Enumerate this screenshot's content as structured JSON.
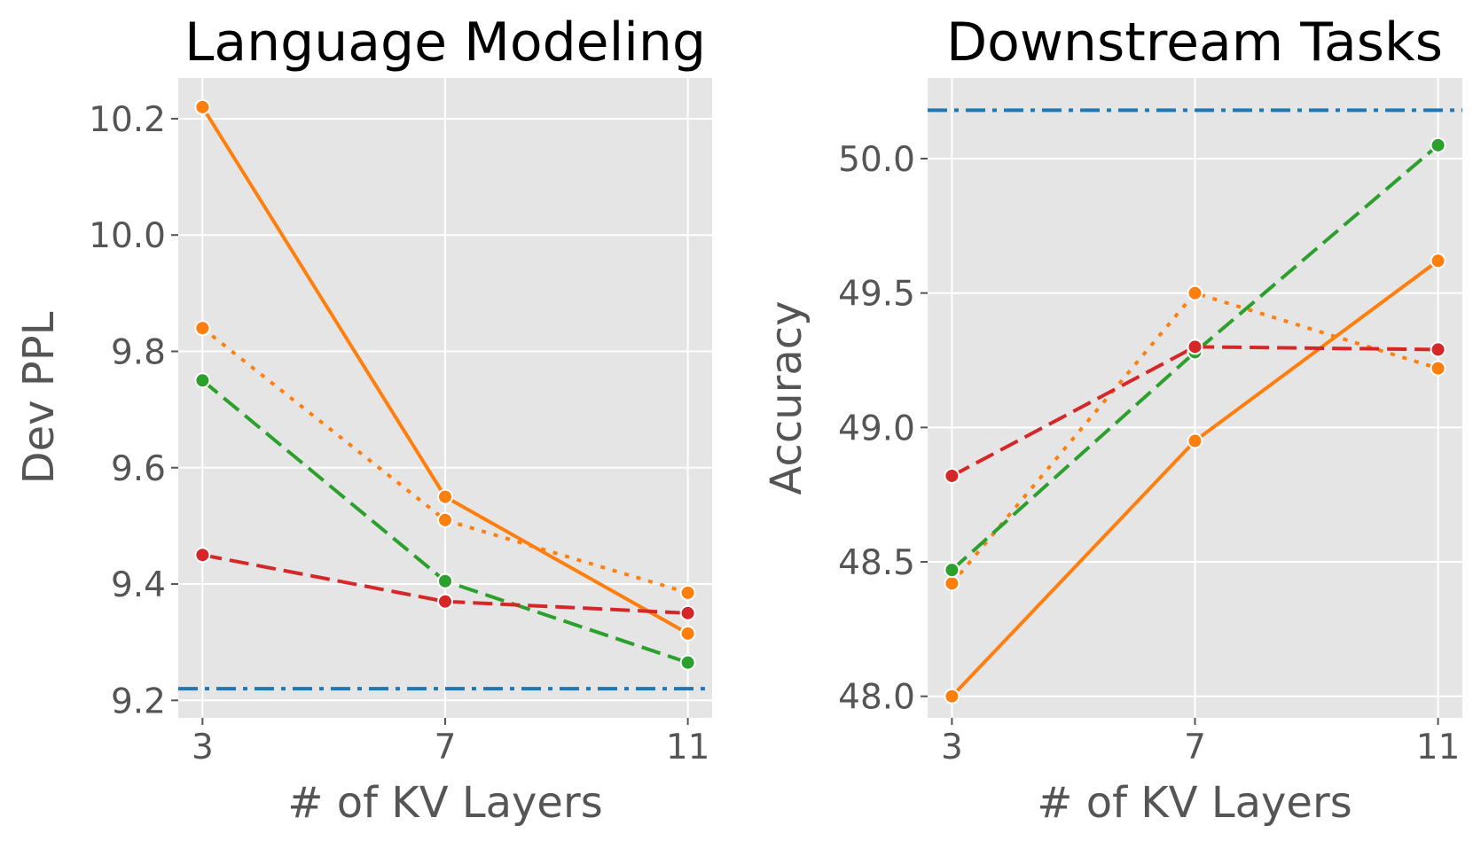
{
  "chart_data": [
    {
      "type": "line",
      "title": "Language Modeling",
      "xlabel": "# of KV Layers",
      "ylabel": "Dev PPL",
      "x": [
        3,
        7,
        11
      ],
      "x_ticks": [
        "3",
        "7",
        "11"
      ],
      "xlim": [
        2.6,
        11.4
      ],
      "ylim": [
        9.17,
        10.27
      ],
      "y_ticks": [
        9.2,
        9.4,
        9.6,
        9.8,
        10.0,
        10.2
      ],
      "y_tick_labels": [
        "9.2",
        "9.4",
        "9.6",
        "9.8",
        "10.0",
        "10.2"
      ],
      "grid": true,
      "reference_line": {
        "value": 9.22,
        "color": "#1f77b4",
        "style": "dashdot"
      },
      "series": [
        {
          "name": "orange-solid",
          "color": "#ff7f0e",
          "style": "solid",
          "values": [
            10.22,
            9.55,
            9.315
          ]
        },
        {
          "name": "orange-dotted",
          "color": "#ff7f0e",
          "style": "dotted",
          "values": [
            9.84,
            9.51,
            9.385
          ]
        },
        {
          "name": "green-dashed",
          "color": "#2ca02c",
          "style": "dashed",
          "values": [
            9.75,
            9.405,
            9.265
          ]
        },
        {
          "name": "red-dashed",
          "color": "#d62728",
          "style": "dashed",
          "values": [
            9.45,
            9.37,
            9.35
          ]
        }
      ]
    },
    {
      "type": "line",
      "title": "Downstream Tasks",
      "xlabel": "# of KV Layers",
      "ylabel": "Accuracy",
      "x": [
        3,
        7,
        11
      ],
      "x_ticks": [
        "3",
        "7",
        "11"
      ],
      "xlim": [
        2.6,
        11.4
      ],
      "ylim": [
        47.92,
        50.3
      ],
      "y_ticks": [
        48.0,
        48.5,
        49.0,
        49.5,
        50.0
      ],
      "y_tick_labels": [
        "48.0",
        "48.5",
        "49.0",
        "49.5",
        "50.0"
      ],
      "grid": true,
      "reference_line": {
        "value": 50.18,
        "color": "#1f77b4",
        "style": "dashdot"
      },
      "series": [
        {
          "name": "orange-solid",
          "color": "#ff7f0e",
          "style": "solid",
          "values": [
            48.0,
            48.95,
            49.62
          ]
        },
        {
          "name": "orange-dotted",
          "color": "#ff7f0e",
          "style": "dotted",
          "values": [
            48.42,
            49.5,
            49.22
          ]
        },
        {
          "name": "green-dashed",
          "color": "#2ca02c",
          "style": "dashed",
          "values": [
            48.47,
            49.28,
            50.05
          ]
        },
        {
          "name": "red-dashed",
          "color": "#d62728",
          "style": "dashed",
          "values": [
            48.82,
            49.3,
            49.29
          ]
        }
      ]
    }
  ]
}
